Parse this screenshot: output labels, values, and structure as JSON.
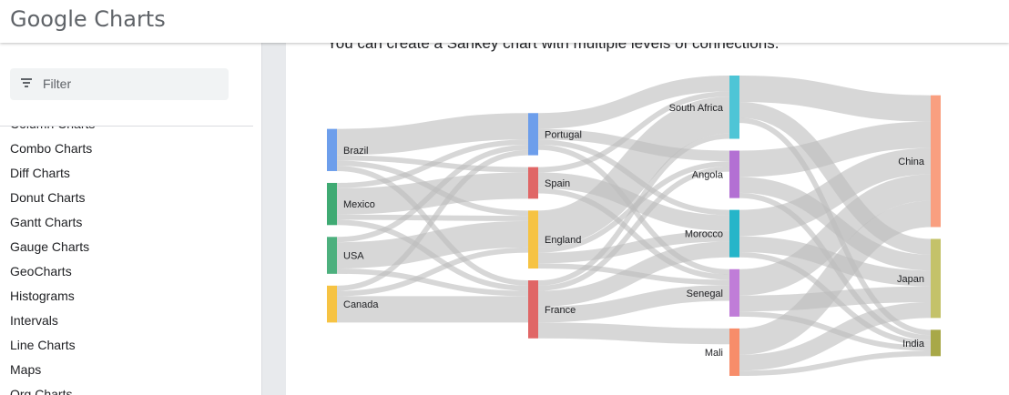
{
  "header": {
    "logo_text": "Google Charts"
  },
  "sidebar": {
    "filter_placeholder": "Filter",
    "items": [
      {
        "label": "Column Charts"
      },
      {
        "label": "Combo Charts"
      },
      {
        "label": "Diff Charts"
      },
      {
        "label": "Donut Charts"
      },
      {
        "label": "Gantt Charts"
      },
      {
        "label": "Gauge Charts"
      },
      {
        "label": "GeoCharts"
      },
      {
        "label": "Histograms"
      },
      {
        "label": "Intervals"
      },
      {
        "label": "Line Charts"
      },
      {
        "label": "Maps"
      },
      {
        "label": "Org Charts"
      }
    ]
  },
  "main": {
    "intro": "You can create a Sankey chart with multiple levels of connections."
  },
  "chart_data": {
    "type": "sankey",
    "columns": [
      [
        {
          "name": "Brazil",
          "color": "#6d9eeb"
        },
        {
          "name": "Mexico",
          "color": "#3faa73"
        },
        {
          "name": "USA",
          "color": "#4db07e"
        },
        {
          "name": "Canada",
          "color": "#f6c343"
        }
      ],
      [
        {
          "name": "Portugal",
          "color": "#6d9eeb"
        },
        {
          "name": "Spain",
          "color": "#e06666"
        },
        {
          "name": "England",
          "color": "#f6c343"
        },
        {
          "name": "France",
          "color": "#e06666"
        }
      ],
      [
        {
          "name": "South Africa",
          "color": "#4ec5d6"
        },
        {
          "name": "Angola",
          "color": "#b370d3"
        },
        {
          "name": "Morocco",
          "color": "#26b5c9"
        },
        {
          "name": "Senegal",
          "color": "#c07dd8"
        },
        {
          "name": "Mali",
          "color": "#f78d6a"
        }
      ],
      [
        {
          "name": "China",
          "color": "#f99f80"
        },
        {
          "name": "Japan",
          "color": "#c4c26a"
        },
        {
          "name": "India",
          "color": "#a8a848"
        }
      ]
    ],
    "links": [
      [
        "Brazil",
        "Portugal",
        5
      ],
      [
        "Brazil",
        "France",
        1
      ],
      [
        "Brazil",
        "Spain",
        1
      ],
      [
        "Brazil",
        "England",
        1
      ],
      [
        "Canada",
        "Portugal",
        1
      ],
      [
        "Canada",
        "France",
        5
      ],
      [
        "Canada",
        "England",
        1
      ],
      [
        "Mexico",
        "Portugal",
        1
      ],
      [
        "Mexico",
        "France",
        1
      ],
      [
        "Mexico",
        "Spain",
        5
      ],
      [
        "Mexico",
        "England",
        1
      ],
      [
        "USA",
        "Portugal",
        1
      ],
      [
        "USA",
        "France",
        1
      ],
      [
        "USA",
        "England",
        5
      ],
      [
        "Portugal",
        "Angola",
        2
      ],
      [
        "Portugal",
        "Senegal",
        1
      ],
      [
        "Portugal",
        "Morocco",
        1
      ],
      [
        "Portugal",
        "South Africa",
        3
      ],
      [
        "France",
        "Angola",
        1
      ],
      [
        "France",
        "Senegal",
        3
      ],
      [
        "France",
        "Mali",
        3
      ],
      [
        "France",
        "Morocco",
        3
      ],
      [
        "France",
        "South Africa",
        1
      ],
      [
        "Spain",
        "Senegal",
        1
      ],
      [
        "Spain",
        "Morocco",
        3
      ],
      [
        "Spain",
        "South Africa",
        1
      ],
      [
        "England",
        "Angola",
        1
      ],
      [
        "England",
        "Senegal",
        1
      ],
      [
        "England",
        "Morocco",
        2
      ],
      [
        "England",
        "South Africa",
        7
      ],
      [
        "South Africa",
        "China",
        5
      ],
      [
        "South Africa",
        "India",
        1
      ],
      [
        "South Africa",
        "Japan",
        3
      ],
      [
        "Angola",
        "China",
        5
      ],
      [
        "Angola",
        "India",
        1
      ],
      [
        "Angola",
        "Japan",
        3
      ],
      [
        "Senegal",
        "China",
        5
      ],
      [
        "Senegal",
        "India",
        1
      ],
      [
        "Senegal",
        "Japan",
        3
      ],
      [
        "Mali",
        "China",
        5
      ],
      [
        "Mali",
        "India",
        1
      ],
      [
        "Mali",
        "Japan",
        3
      ],
      [
        "Morocco",
        "China",
        5
      ],
      [
        "Morocco",
        "India",
        1
      ],
      [
        "Morocco",
        "Japan",
        3
      ]
    ]
  }
}
